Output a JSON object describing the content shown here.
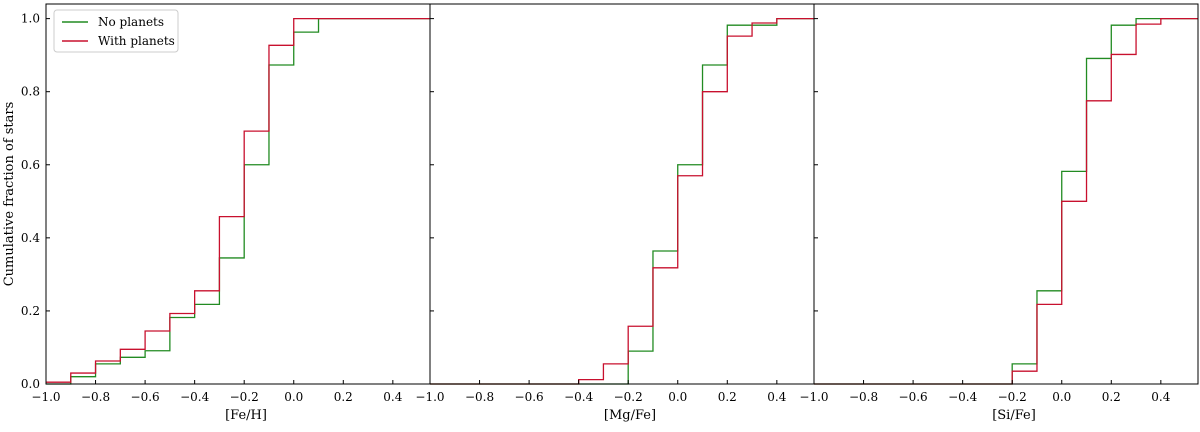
{
  "chart_data": {
    "type": "line",
    "ylabel": "Cumulative fraction of stars",
    "ylim": [
      0.0,
      1.04
    ],
    "yticks": [
      "0.0",
      "0.2",
      "0.4",
      "0.6",
      "0.8",
      "1.0"
    ],
    "xticks_values": [
      -1.0,
      -0.8,
      -0.6,
      -0.4,
      -0.2,
      0.0,
      0.2,
      0.4
    ],
    "xticks_labels": [
      "−1.0",
      "−0.8",
      "−0.6",
      "−0.4",
      "−0.2",
      "0.0",
      "0.2",
      "0.4"
    ],
    "legend": {
      "placement": "top-left",
      "entries": [
        {
          "name": "No planets",
          "color": "#228B22"
        },
        {
          "name": "With planets",
          "color": "#C8102E"
        }
      ]
    },
    "colors": {
      "no_planets": "#228B22",
      "with_planets": "#C8102E"
    },
    "panels": [
      {
        "xlabel": "[Fe/H]",
        "xlim": [
          -1.0,
          0.55
        ],
        "series": [
          {
            "name": "No planets",
            "x": [
              -1.0,
              -0.9,
              -0.8,
              -0.7,
              -0.6,
              -0.5,
              -0.4,
              -0.3,
              -0.2,
              -0.1,
              0.0,
              0.1,
              0.55
            ],
            "y": [
              0.0,
              0.02,
              0.055,
              0.073,
              0.091,
              0.182,
              0.218,
              0.345,
              0.6,
              0.873,
              0.963,
              1.0,
              1.0
            ]
          },
          {
            "name": "With planets",
            "x": [
              -1.0,
              -0.9,
              -0.8,
              -0.7,
              -0.6,
              -0.5,
              -0.4,
              -0.3,
              -0.2,
              -0.1,
              0.0,
              0.1,
              0.55
            ],
            "y": [
              0.005,
              0.03,
              0.063,
              0.095,
              0.145,
              0.193,
              0.255,
              0.458,
              0.692,
              0.927,
              1.0,
              1.0,
              1.0
            ]
          }
        ]
      },
      {
        "xlabel": "[Mg/Fe]",
        "xlim": [
          -1.0,
          0.55
        ],
        "series": [
          {
            "name": "No planets",
            "x": [
              -1.0,
              -0.4,
              -0.3,
              -0.2,
              -0.1,
              0.0,
              0.1,
              0.2,
              0.3,
              0.4,
              0.55
            ],
            "y": [
              0.0,
              0.0,
              0.0,
              0.09,
              0.364,
              0.6,
              0.873,
              0.982,
              0.982,
              1.0,
              1.0
            ]
          },
          {
            "name": "With planets",
            "x": [
              -1.0,
              -0.4,
              -0.3,
              -0.2,
              -0.1,
              0.0,
              0.1,
              0.2,
              0.3,
              0.4,
              0.55
            ],
            "y": [
              0.0,
              0.012,
              0.055,
              0.158,
              0.318,
              0.57,
              0.8,
              0.952,
              0.988,
              1.0,
              1.0
            ]
          }
        ]
      },
      {
        "xlabel": "[Si/Fe]",
        "xlim": [
          -1.0,
          0.55
        ],
        "series": [
          {
            "name": "No planets",
            "x": [
              -1.0,
              -0.2,
              -0.1,
              0.0,
              0.1,
              0.2,
              0.3,
              0.55
            ],
            "y": [
              0.0,
              0.055,
              0.255,
              0.582,
              0.891,
              0.982,
              1.0,
              1.0
            ]
          },
          {
            "name": "With planets",
            "x": [
              -1.0,
              -0.2,
              -0.1,
              0.0,
              0.1,
              0.2,
              0.3,
              0.4,
              0.55
            ],
            "y": [
              0.0,
              0.035,
              0.218,
              0.5,
              0.775,
              0.902,
              0.985,
              1.0,
              1.0
            ]
          }
        ]
      }
    ]
  }
}
